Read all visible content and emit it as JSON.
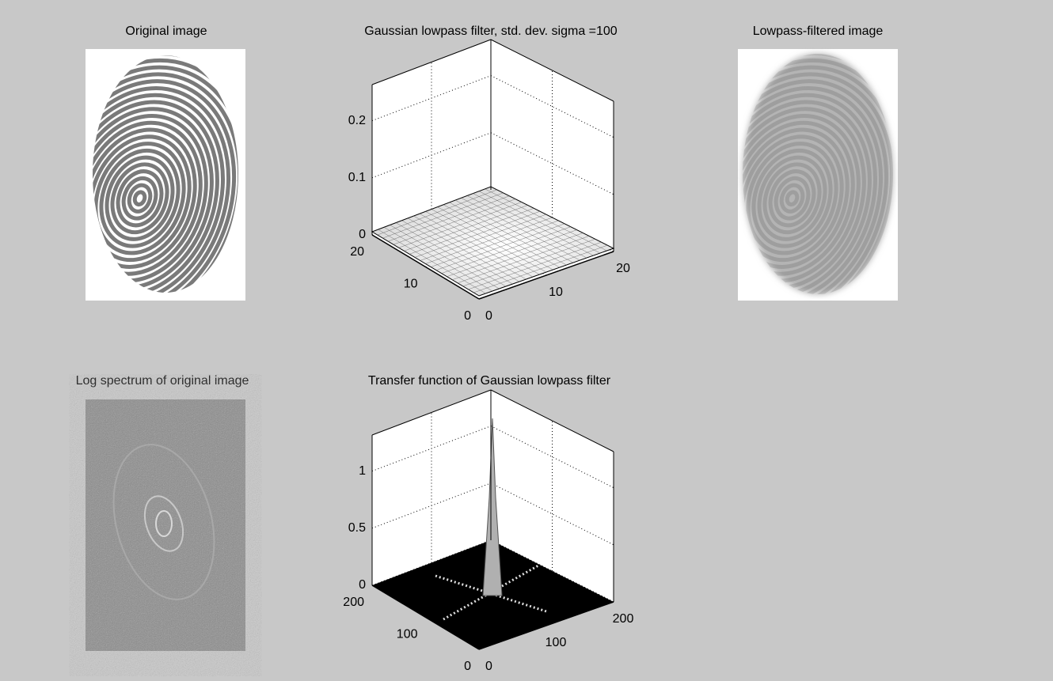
{
  "panels": [
    {
      "title": "Original image"
    },
    {
      "title": "Gaussian lowpass filter, std. dev. sigma =100",
      "z_ticks": [
        "0.2",
        "0.1",
        "0"
      ],
      "x_ticks": [
        "20",
        "10",
        "0"
      ],
      "y_ticks": [
        "0",
        "10",
        "20"
      ]
    },
    {
      "title": "Lowpass-filtered image"
    },
    {
      "title": "Log spectrum of original image"
    },
    {
      "title": "Transfer function of Gaussian lowpass filter",
      "z_ticks": [
        "1",
        "0.5",
        "0"
      ],
      "x_ticks": [
        "200",
        "100",
        "0"
      ],
      "y_ticks": [
        "0",
        "100",
        "200"
      ]
    }
  ]
}
